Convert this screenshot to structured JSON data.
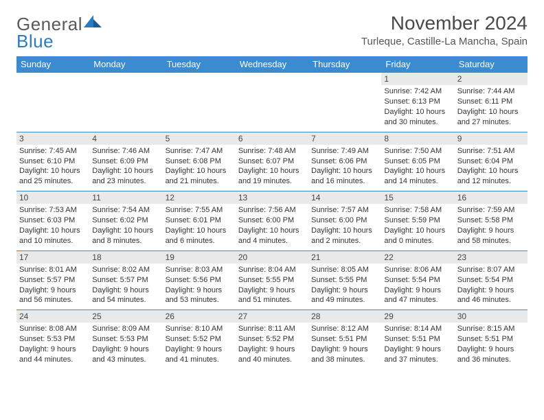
{
  "logo": {
    "general": "General",
    "blue": "Blue"
  },
  "header": {
    "title": "November 2024",
    "location": "Turleque, Castille-La Mancha, Spain"
  },
  "style": {
    "header_bg": "#3a8bd0",
    "header_text": "#ffffff",
    "daynum_bg": "#e9e9e9",
    "row_border": "#3a8bd0",
    "body_text": "#333333",
    "title_color": "#4a4a4a",
    "location_color": "#555555",
    "logo_gray": "#5a5a5a",
    "logo_blue": "#2b7bbf"
  },
  "weekdays": [
    "Sunday",
    "Monday",
    "Tuesday",
    "Wednesday",
    "Thursday",
    "Friday",
    "Saturday"
  ],
  "weeks": [
    [
      {
        "day": "",
        "lines": []
      },
      {
        "day": "",
        "lines": []
      },
      {
        "day": "",
        "lines": []
      },
      {
        "day": "",
        "lines": []
      },
      {
        "day": "",
        "lines": []
      },
      {
        "day": "1",
        "lines": [
          "Sunrise: 7:42 AM",
          "Sunset: 6:13 PM",
          "Daylight: 10 hours and 30 minutes."
        ]
      },
      {
        "day": "2",
        "lines": [
          "Sunrise: 7:44 AM",
          "Sunset: 6:11 PM",
          "Daylight: 10 hours and 27 minutes."
        ]
      }
    ],
    [
      {
        "day": "3",
        "lines": [
          "Sunrise: 7:45 AM",
          "Sunset: 6:10 PM",
          "Daylight: 10 hours and 25 minutes."
        ]
      },
      {
        "day": "4",
        "lines": [
          "Sunrise: 7:46 AM",
          "Sunset: 6:09 PM",
          "Daylight: 10 hours and 23 minutes."
        ]
      },
      {
        "day": "5",
        "lines": [
          "Sunrise: 7:47 AM",
          "Sunset: 6:08 PM",
          "Daylight: 10 hours and 21 minutes."
        ]
      },
      {
        "day": "6",
        "lines": [
          "Sunrise: 7:48 AM",
          "Sunset: 6:07 PM",
          "Daylight: 10 hours and 19 minutes."
        ]
      },
      {
        "day": "7",
        "lines": [
          "Sunrise: 7:49 AM",
          "Sunset: 6:06 PM",
          "Daylight: 10 hours and 16 minutes."
        ]
      },
      {
        "day": "8",
        "lines": [
          "Sunrise: 7:50 AM",
          "Sunset: 6:05 PM",
          "Daylight: 10 hours and 14 minutes."
        ]
      },
      {
        "day": "9",
        "lines": [
          "Sunrise: 7:51 AM",
          "Sunset: 6:04 PM",
          "Daylight: 10 hours and 12 minutes."
        ]
      }
    ],
    [
      {
        "day": "10",
        "lines": [
          "Sunrise: 7:53 AM",
          "Sunset: 6:03 PM",
          "Daylight: 10 hours and 10 minutes."
        ]
      },
      {
        "day": "11",
        "lines": [
          "Sunrise: 7:54 AM",
          "Sunset: 6:02 PM",
          "Daylight: 10 hours and 8 minutes."
        ]
      },
      {
        "day": "12",
        "lines": [
          "Sunrise: 7:55 AM",
          "Sunset: 6:01 PM",
          "Daylight: 10 hours and 6 minutes."
        ]
      },
      {
        "day": "13",
        "lines": [
          "Sunrise: 7:56 AM",
          "Sunset: 6:00 PM",
          "Daylight: 10 hours and 4 minutes."
        ]
      },
      {
        "day": "14",
        "lines": [
          "Sunrise: 7:57 AM",
          "Sunset: 6:00 PM",
          "Daylight: 10 hours and 2 minutes."
        ]
      },
      {
        "day": "15",
        "lines": [
          "Sunrise: 7:58 AM",
          "Sunset: 5:59 PM",
          "Daylight: 10 hours and 0 minutes."
        ]
      },
      {
        "day": "16",
        "lines": [
          "Sunrise: 7:59 AM",
          "Sunset: 5:58 PM",
          "Daylight: 9 hours and 58 minutes."
        ]
      }
    ],
    [
      {
        "day": "17",
        "lines": [
          "Sunrise: 8:01 AM",
          "Sunset: 5:57 PM",
          "Daylight: 9 hours and 56 minutes."
        ]
      },
      {
        "day": "18",
        "lines": [
          "Sunrise: 8:02 AM",
          "Sunset: 5:57 PM",
          "Daylight: 9 hours and 54 minutes."
        ]
      },
      {
        "day": "19",
        "lines": [
          "Sunrise: 8:03 AM",
          "Sunset: 5:56 PM",
          "Daylight: 9 hours and 53 minutes."
        ]
      },
      {
        "day": "20",
        "lines": [
          "Sunrise: 8:04 AM",
          "Sunset: 5:55 PM",
          "Daylight: 9 hours and 51 minutes."
        ]
      },
      {
        "day": "21",
        "lines": [
          "Sunrise: 8:05 AM",
          "Sunset: 5:55 PM",
          "Daylight: 9 hours and 49 minutes."
        ]
      },
      {
        "day": "22",
        "lines": [
          "Sunrise: 8:06 AM",
          "Sunset: 5:54 PM",
          "Daylight: 9 hours and 47 minutes."
        ]
      },
      {
        "day": "23",
        "lines": [
          "Sunrise: 8:07 AM",
          "Sunset: 5:54 PM",
          "Daylight: 9 hours and 46 minutes."
        ]
      }
    ],
    [
      {
        "day": "24",
        "lines": [
          "Sunrise: 8:08 AM",
          "Sunset: 5:53 PM",
          "Daylight: 9 hours and 44 minutes."
        ]
      },
      {
        "day": "25",
        "lines": [
          "Sunrise: 8:09 AM",
          "Sunset: 5:53 PM",
          "Daylight: 9 hours and 43 minutes."
        ]
      },
      {
        "day": "26",
        "lines": [
          "Sunrise: 8:10 AM",
          "Sunset: 5:52 PM",
          "Daylight: 9 hours and 41 minutes."
        ]
      },
      {
        "day": "27",
        "lines": [
          "Sunrise: 8:11 AM",
          "Sunset: 5:52 PM",
          "Daylight: 9 hours and 40 minutes."
        ]
      },
      {
        "day": "28",
        "lines": [
          "Sunrise: 8:12 AM",
          "Sunset: 5:51 PM",
          "Daylight: 9 hours and 38 minutes."
        ]
      },
      {
        "day": "29",
        "lines": [
          "Sunrise: 8:14 AM",
          "Sunset: 5:51 PM",
          "Daylight: 9 hours and 37 minutes."
        ]
      },
      {
        "day": "30",
        "lines": [
          "Sunrise: 8:15 AM",
          "Sunset: 5:51 PM",
          "Daylight: 9 hours and 36 minutes."
        ]
      }
    ]
  ]
}
